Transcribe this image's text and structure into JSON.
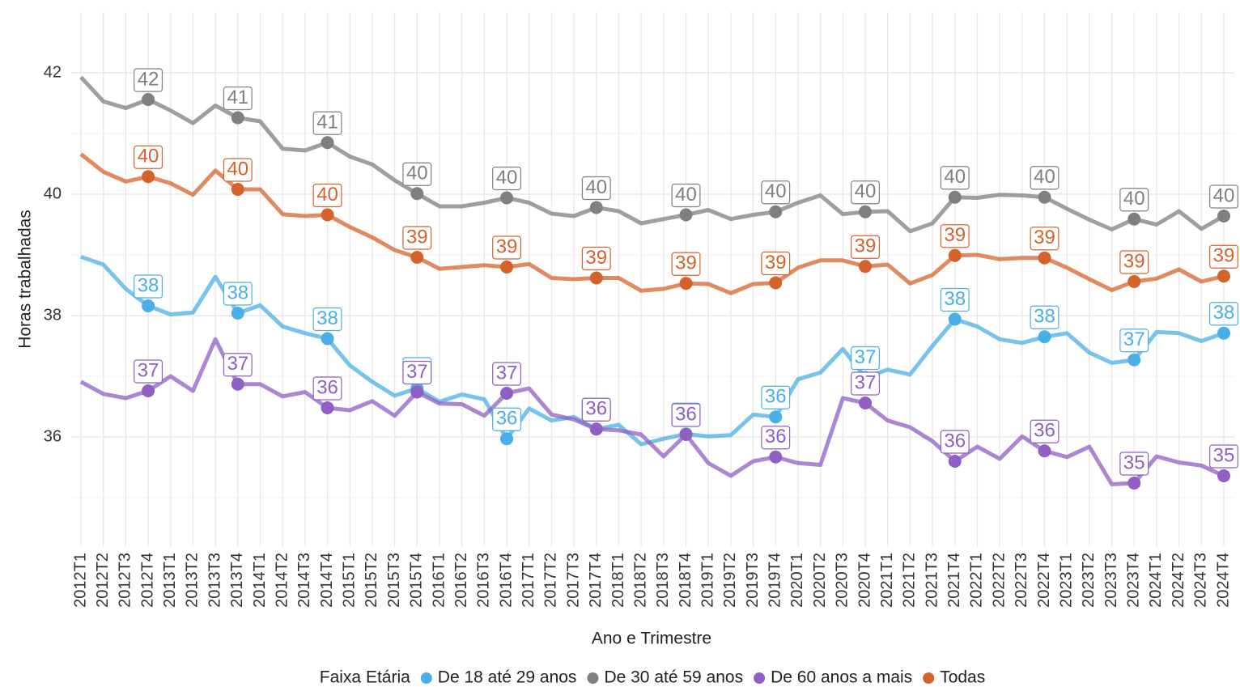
{
  "chart_data": {
    "type": "line",
    "x_label": "Ano e Trimestre",
    "y_label": "Horas trabalhadas",
    "legend_title": "Faixa Etária",
    "legend_position": "bottom",
    "grid": true,
    "categories": [
      "2012T1",
      "2012T2",
      "2012T3",
      "2012T4",
      "2013T1",
      "2013T2",
      "2013T3",
      "2013T4",
      "2014T1",
      "2014T2",
      "2014T3",
      "2014T4",
      "2015T1",
      "2015T2",
      "2015T3",
      "2015T4",
      "2016T1",
      "2016T2",
      "2016T3",
      "2016T4",
      "2017T1",
      "2017T2",
      "2017T3",
      "2017T4",
      "2018T1",
      "2018T2",
      "2018T3",
      "2018T4",
      "2019T1",
      "2019T2",
      "2019T3",
      "2019T4",
      "2020T1",
      "2020T2",
      "2020T3",
      "2020T4",
      "2021T1",
      "2021T2",
      "2021T3",
      "2021T4",
      "2022T1",
      "2022T2",
      "2022T3",
      "2022T4",
      "2023T1",
      "2023T2",
      "2023T3",
      "2023T4",
      "2024T1",
      "2024T2",
      "2024T3",
      "2024T4"
    ],
    "ylim": [
      34.2,
      43
    ],
    "yticks": [
      36,
      38,
      40,
      42
    ],
    "series": [
      {
        "name": "De 18 até 29 anos",
        "color": "#4aafe6",
        "values": [
          38.97,
          38.84,
          38.44,
          38.16,
          38.02,
          38.05,
          38.64,
          38.04,
          38.17,
          37.82,
          37.71,
          37.62,
          37.18,
          36.91,
          36.68,
          36.8,
          36.58,
          36.7,
          36.62,
          35.97,
          36.47,
          36.27,
          36.33,
          36.13,
          36.2,
          35.88,
          35.97,
          36.05,
          36.01,
          36.03,
          36.37,
          36.33,
          36.95,
          37.06,
          37.45,
          36.98,
          37.11,
          37.03,
          37.5,
          37.94,
          37.82,
          37.61,
          37.55,
          37.65,
          37.71,
          37.39,
          37.22,
          37.27,
          37.73,
          37.71,
          37.58,
          37.71
        ],
        "value_labels": [
          null,
          null,
          null,
          "38",
          null,
          null,
          null,
          "38",
          null,
          null,
          null,
          "38",
          null,
          null,
          null,
          "37",
          null,
          null,
          null,
          "36",
          null,
          null,
          null,
          "36",
          null,
          null,
          null,
          "36",
          null,
          null,
          null,
          "36",
          null,
          null,
          null,
          "37",
          null,
          null,
          null,
          "38",
          null,
          null,
          null,
          "38",
          null,
          null,
          null,
          "37",
          null,
          null,
          null,
          "38"
        ]
      },
      {
        "name": "De 30 até 59 anos",
        "color": "#7f7f7f",
        "values": [
          41.93,
          41.53,
          41.42,
          41.56,
          41.38,
          41.17,
          41.46,
          41.26,
          41.2,
          40.75,
          40.72,
          40.85,
          40.62,
          40.49,
          40.23,
          40.01,
          39.8,
          39.8,
          39.86,
          39.94,
          39.86,
          39.68,
          39.64,
          39.78,
          39.72,
          39.52,
          39.59,
          39.66,
          39.74,
          39.59,
          39.66,
          39.71,
          39.86,
          39.98,
          39.67,
          39.71,
          39.72,
          39.39,
          39.52,
          39.95,
          39.94,
          39.99,
          39.98,
          39.95,
          39.76,
          39.58,
          39.42,
          39.59,
          39.5,
          39.72,
          39.43,
          39.64
        ],
        "value_labels": [
          null,
          null,
          null,
          "42",
          null,
          null,
          null,
          "41",
          null,
          null,
          null,
          "41",
          null,
          null,
          null,
          "40",
          null,
          null,
          null,
          "40",
          null,
          null,
          null,
          "40",
          null,
          null,
          null,
          "40",
          null,
          null,
          null,
          "40",
          null,
          null,
          null,
          "40",
          null,
          null,
          null,
          "40",
          null,
          null,
          null,
          "40",
          null,
          null,
          null,
          "40",
          null,
          null,
          null,
          "40"
        ]
      },
      {
        "name": "De 60 anos a mais",
        "color": "#8f5fc4",
        "values": [
          36.91,
          36.71,
          36.64,
          36.76,
          37.0,
          36.76,
          37.61,
          36.87,
          36.87,
          36.67,
          36.74,
          36.48,
          36.44,
          36.59,
          36.35,
          36.74,
          36.55,
          36.54,
          36.35,
          36.72,
          36.8,
          36.37,
          36.29,
          36.13,
          36.11,
          36.04,
          35.68,
          36.04,
          35.57,
          35.36,
          35.6,
          35.67,
          35.57,
          35.54,
          36.64,
          36.56,
          36.27,
          36.16,
          35.93,
          35.6,
          35.84,
          35.64,
          36.01,
          35.77,
          35.67,
          35.84,
          35.22,
          35.24,
          35.68,
          35.58,
          35.53,
          35.36
        ],
        "value_labels": [
          null,
          null,
          null,
          "37",
          null,
          null,
          null,
          "37",
          null,
          null,
          null,
          "36",
          null,
          null,
          null,
          "37",
          null,
          null,
          null,
          "37",
          null,
          null,
          null,
          "36",
          null,
          null,
          null,
          "36",
          null,
          null,
          null,
          "36",
          null,
          null,
          null,
          "37",
          null,
          null,
          null,
          "36",
          null,
          null,
          null,
          "36",
          null,
          null,
          null,
          "35",
          null,
          null,
          null,
          "35"
        ]
      },
      {
        "name": "Todas",
        "color": "#d4632b",
        "values": [
          40.66,
          40.37,
          40.21,
          40.29,
          40.18,
          39.99,
          40.39,
          40.08,
          40.08,
          39.67,
          39.64,
          39.66,
          39.46,
          39.29,
          39.08,
          38.96,
          38.77,
          38.8,
          38.83,
          38.8,
          38.85,
          38.62,
          38.6,
          38.62,
          38.62,
          38.41,
          38.44,
          38.53,
          38.52,
          38.37,
          38.52,
          38.54,
          38.79,
          38.91,
          38.91,
          38.81,
          38.84,
          38.53,
          38.67,
          38.99,
          39.0,
          38.93,
          38.95,
          38.95,
          38.79,
          38.6,
          38.42,
          38.56,
          38.61,
          38.76,
          38.56,
          38.65
        ],
        "value_labels": [
          null,
          null,
          null,
          "40",
          null,
          null,
          null,
          "40",
          null,
          null,
          null,
          "40",
          null,
          null,
          null,
          "39",
          null,
          null,
          null,
          "39",
          null,
          null,
          null,
          "39",
          null,
          null,
          null,
          "39",
          null,
          null,
          null,
          "39",
          null,
          null,
          null,
          "39",
          null,
          null,
          null,
          "39",
          null,
          null,
          null,
          "39",
          null,
          null,
          null,
          "39",
          null,
          null,
          null,
          "39"
        ]
      }
    ]
  }
}
